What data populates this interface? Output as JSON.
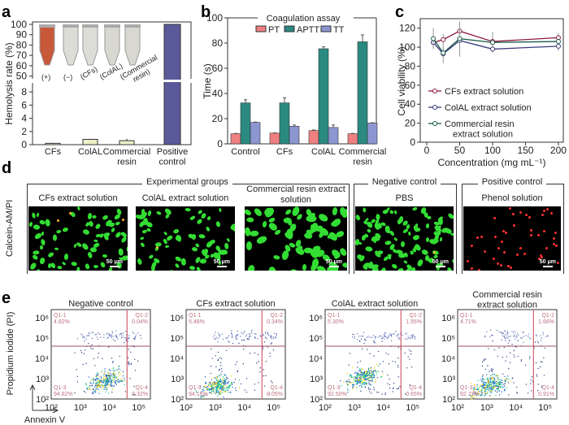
{
  "panels": {
    "a": "a",
    "b": "b",
    "c": "c",
    "d": "d",
    "e": "e"
  },
  "colors": {
    "pt": "#f08080",
    "aptt": "#2a8a80",
    "tt": "#8c96d0",
    "positive": "#5a5a9a",
    "cfs_line": "#8b1a3a",
    "colal_line": "#3a3a7a",
    "commercial_line": "#1a5a4a",
    "gate": "#d06070"
  },
  "chart_data": [
    {
      "type": "bar",
      "panel": "a",
      "ylabel": "Hemolysis rate (%)",
      "categories": [
        "CFs",
        "ColAL",
        "Commercial resin",
        "Positive control"
      ],
      "values": [
        0.2,
        0.8,
        0.6,
        100
      ],
      "errors": [
        0.1,
        0.1,
        0.3,
        0
      ],
      "y_break": [
        9,
        45
      ],
      "ylim": [
        0,
        100
      ],
      "yticks_low": [
        0,
        2,
        4,
        6,
        8
      ],
      "yticks_high": [
        50,
        60,
        70,
        80,
        90,
        100
      ],
      "tube_labels": [
        "(+)",
        "(−)",
        "(CFs)",
        "(ColAL)",
        "(Commercial resin)"
      ]
    },
    {
      "type": "bar",
      "panel": "b",
      "title": "Coagulation assay",
      "ylabel": "Time (s)",
      "categories": [
        "Control",
        "CFs",
        "ColAL",
        "Commercial resin"
      ],
      "ylim": [
        0,
        100
      ],
      "yticks": [
        0,
        20,
        40,
        60,
        80,
        100
      ],
      "legend": "top",
      "series": [
        {
          "name": "PT",
          "values": [
            8,
            8.5,
            10.5,
            8
          ],
          "errors": [
            0.3,
            0.3,
            0.5,
            0.3
          ]
        },
        {
          "name": "APTT",
          "values": [
            32.5,
            32.5,
            75.5,
            81
          ],
          "errors": [
            2.5,
            4,
            1.5,
            5.5
          ]
        },
        {
          "name": "TT",
          "values": [
            17,
            14,
            13,
            16.5
          ],
          "errors": [
            0.3,
            1,
            2,
            0.3
          ]
        }
      ]
    },
    {
      "type": "line",
      "panel": "c",
      "xlabel": "Concentration (mg mL⁻¹)",
      "ylabel": "Cell viability (%)",
      "x": [
        10,
        25,
        50,
        100,
        200
      ],
      "xlim": [
        0,
        205
      ],
      "ylim": [
        0,
        130
      ],
      "xticks": [
        0,
        50,
        100,
        150,
        200
      ],
      "yticks": [
        0,
        20,
        40,
        60,
        80,
        100,
        120
      ],
      "legend": "bottom-left",
      "series": [
        {
          "name": "CFs extract solution",
          "values": [
            105,
            108,
            117,
            106,
            110
          ],
          "errors": [
            5,
            6,
            10,
            10,
            5
          ]
        },
        {
          "name": "ColAL extract solution",
          "values": [
            105,
            93,
            107,
            98,
            101
          ],
          "errors": [
            6,
            10,
            17,
            4,
            5
          ]
        },
        {
          "name": "Commercial resin extract solution",
          "values": [
            109,
            94,
            109,
            105,
            106
          ],
          "errors": [
            11,
            5,
            8,
            3,
            3
          ]
        }
      ]
    },
    {
      "type": "scatter",
      "panel": "e",
      "xlabel": "Annexin V",
      "ylabel": "Propidium iodide (PI)",
      "xticks": [
        "10²",
        "10³",
        "10⁴",
        "10⁵"
      ],
      "yticks": [
        "10²",
        "10³",
        "10⁴",
        "10⁵",
        "10⁶"
      ],
      "plots": [
        {
          "title": "Negative control",
          "quadrants": [
            [
              "Q1-1",
              "4.82%"
            ],
            [
              "Q1-2",
              "0.04%"
            ],
            [
              "Q1-3",
              "94.82%"
            ],
            [
              "Q1-4",
              "0.32%"
            ]
          ]
        },
        {
          "title": "CFs extract solution",
          "quadrants": [
            [
              "Q1-1",
              "5.46%"
            ],
            [
              "Q1-2",
              "0.34%"
            ],
            [
              "Q1-3",
              "94.15%"
            ],
            [
              "Q1-4",
              "0.05%"
            ]
          ]
        },
        {
          "title": "ColAL extract solution",
          "quadrants": [
            [
              "Q1-1",
              "5.30%"
            ],
            [
              "Q1-2",
              "1.55%"
            ],
            [
              "Q1-3",
              "92.50%"
            ],
            [
              "Q1-4",
              "0.65%"
            ]
          ]
        },
        {
          "title": "Commercial resin extract solution",
          "quadrants": [
            [
              "Q1-1",
              "4.71%"
            ],
            [
              "Q1-2",
              "1.66%"
            ],
            [
              "Q1-3",
              "92.72%"
            ],
            [
              "Q1-4",
              "0.91%"
            ]
          ]
        }
      ]
    }
  ],
  "d": {
    "ylabel": "Calcein-AM/PI",
    "groups": [
      {
        "title": "Experimental groups"
      },
      {
        "title": "Negative control"
      },
      {
        "title": "Positive control"
      }
    ],
    "images": [
      {
        "label": "CFs extract solution",
        "scale": "50 μm"
      },
      {
        "label": "ColAL extract solution",
        "scale": "50 μm"
      },
      {
        "label": "Commercial resin extract solution",
        "scale": "50 μm"
      },
      {
        "label": "PBS",
        "scale": "50 μm"
      },
      {
        "label": "Phenol solution",
        "scale": "50 μm"
      }
    ]
  }
}
